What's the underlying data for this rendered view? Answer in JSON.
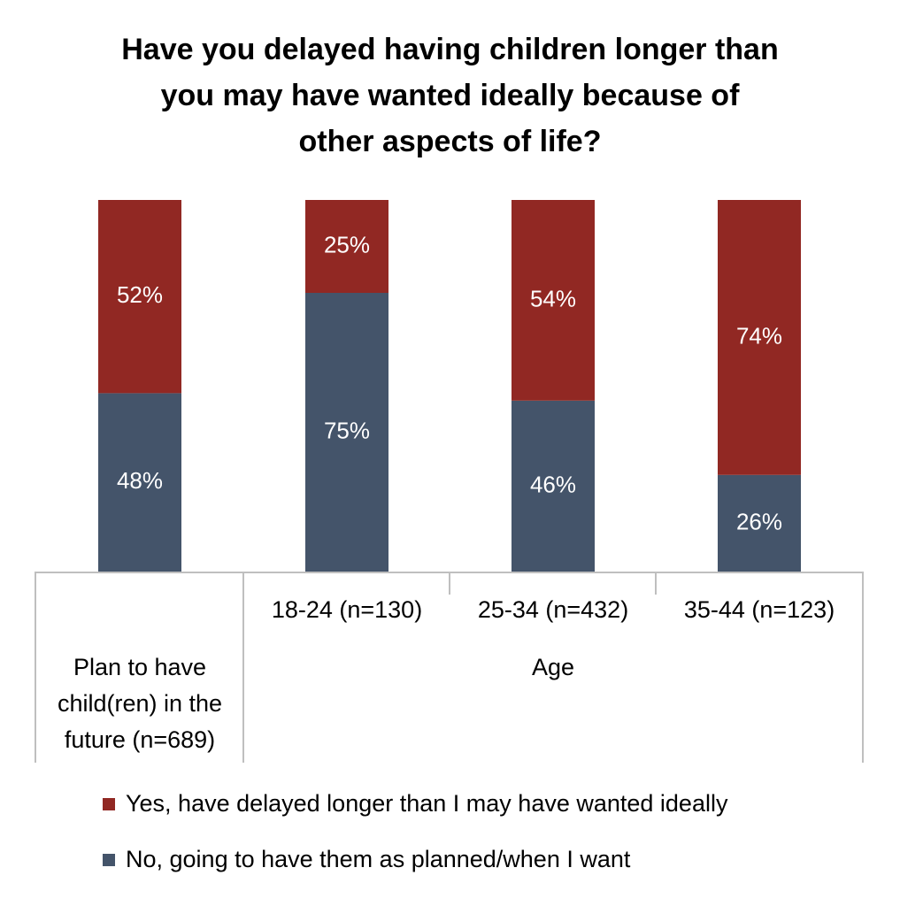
{
  "title_lines": [
    "Have you delayed having children longer than",
    "you may have wanted ideally because of",
    "other aspects of life?"
  ],
  "chart_data": {
    "type": "bar",
    "stacked": true,
    "normalized": true,
    "categories": [
      "Plan to have child(ren) in the future (n=689)",
      "18-24 (n=130)",
      "25-34 (n=432)",
      "35-44 (n=123)"
    ],
    "category_label_lines": [
      [
        "Plan to have",
        "child(ren) in the",
        "future (n=689)"
      ],
      [
        "18-24 (n=130)"
      ],
      [
        "25-34 (n=432)"
      ],
      [
        "35-44 (n=123)"
      ]
    ],
    "group_label": "Age",
    "series": [
      {
        "name": "No, going to have them as planned/when I want",
        "values": [
          48,
          75,
          46,
          26
        ],
        "labels": [
          "48%",
          "75%",
          "46%",
          "26%"
        ],
        "color": "#44546A"
      },
      {
        "name": "Yes, have delayed longer than I may have wanted ideally",
        "values": [
          52,
          25,
          54,
          74
        ],
        "labels": [
          "52%",
          "25%",
          "54%",
          "74%"
        ],
        "color": "#912823"
      }
    ],
    "ylim": [
      0,
      100
    ],
    "legend_position": "bottom"
  },
  "legend": [
    {
      "label": "Yes, have delayed longer than I may have wanted ideally",
      "color": "#912823"
    },
    {
      "label": "No, going to have them as planned/when I want",
      "color": "#44546A"
    }
  ]
}
